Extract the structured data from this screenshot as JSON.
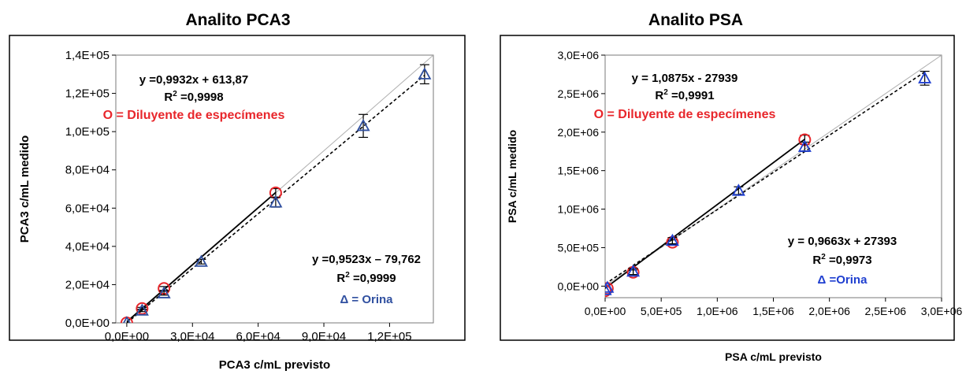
{
  "chart_data": [
    {
      "type": "scatter",
      "title": "Analito PCA3",
      "xlabel": "PCA3 c/mL previsto",
      "ylabel": "PCA3 c/mL medido",
      "xlim": [
        -5000,
        140000
      ],
      "ylim": [
        0,
        140000
      ],
      "x_ticks": [
        0,
        30000,
        60000,
        90000,
        120000
      ],
      "x_tick_labels": [
        "0,0E+00",
        "3,0E+04",
        "6,0E+04",
        "9,0E+04",
        "1,2E+05"
      ],
      "y_ticks": [
        0,
        20000,
        40000,
        60000,
        80000,
        100000,
        120000,
        140000
      ],
      "y_tick_labels": [
        "0,0E+00",
        "2,0E+04",
        "4,0E+04",
        "6,0E+04",
        "8,0E+04",
        "1,0E+05",
        "1,2E+05",
        "1,4E+05"
      ],
      "grid": false,
      "identity_line": true,
      "series": [
        {
          "marker": "circle",
          "color": "#e8262b",
          "points": [
            {
              "x": 0,
              "y": 0,
              "err": 0
            },
            {
              "x": 7000,
              "y": 7500,
              "err": 600
            },
            {
              "x": 17000,
              "y": 18000,
              "err": 1000
            },
            {
              "x": 68000,
              "y": 68000,
              "err": 2200
            }
          ],
          "fit": {
            "slope": 0.9932,
            "intercept": 613.87,
            "style": "solid",
            "x_range": [
              0,
              68000
            ]
          }
        },
        {
          "marker": "triangle",
          "color": "#3050a0",
          "points": [
            {
              "x": 0,
              "y": 0,
              "err": 0
            },
            {
              "x": 7000,
              "y": 6500,
              "err": 600
            },
            {
              "x": 17000,
              "y": 15500,
              "err": 1000
            },
            {
              "x": 34000,
              "y": 32000,
              "err": 1200
            },
            {
              "x": 68000,
              "y": 63000,
              "err": 2500
            },
            {
              "x": 108000,
              "y": 103000,
              "err": 6000
            },
            {
              "x": 136000,
              "y": 130000,
              "err": 5000
            }
          ],
          "fit": {
            "slope": 0.9523,
            "intercept": -79.762,
            "style": "dashed",
            "x_range": [
              0,
              136000
            ]
          }
        }
      ],
      "annotations": {
        "eq1": "y =0,9932x + 613,87",
        "r2_1_prefix": "R",
        "r2_1_sup": "2",
        "r2_1_value": " =0,9998",
        "legend1": "O = Diluyente de especímenes",
        "eq2": "y =0,9523x – 79,762",
        "r2_2_prefix": "R",
        "r2_2_sup": "2",
        "r2_2_value": " =0,9999",
        "legend2": "Δ = Orina"
      }
    },
    {
      "type": "scatter",
      "title": "Analito PSA",
      "xlabel": "PSA c/mL previsto",
      "ylabel": "PSA c/mL medido",
      "xlim": [
        0,
        3000000
      ],
      "ylim": [
        -150000,
        3000000
      ],
      "x_ticks": [
        0,
        500000,
        1000000,
        1500000,
        2000000,
        2500000,
        3000000
      ],
      "x_tick_labels": [
        "0,0E+00",
        "5,0E+05",
        "1,0E+06",
        "1,5E+06",
        "2,0E+06",
        "2,5E+06",
        "3,0E+06"
      ],
      "y_ticks": [
        0,
        500000,
        1000000,
        1500000,
        2000000,
        2500000,
        3000000
      ],
      "y_tick_labels": [
        "0,0E+00",
        "5,0E+05",
        "1,0E+06",
        "1,5E+06",
        "2,0E+06",
        "2,5E+06",
        "3,0E+06"
      ],
      "grid": false,
      "identity_line": true,
      "series": [
        {
          "marker": "circle",
          "color": "#e8262b",
          "points": [
            {
              "x": 0,
              "y": -60000,
              "err": 0
            },
            {
              "x": 20000,
              "y": -30000,
              "err": 0
            },
            {
              "x": 250000,
              "y": 180000,
              "err": 30000
            },
            {
              "x": 600000,
              "y": 570000,
              "err": 30000
            },
            {
              "x": 1780000,
              "y": 1900000,
              "err": 60000
            }
          ],
          "fit": {
            "slope": 1.0875,
            "intercept": -27939,
            "style": "solid",
            "x_range": [
              0,
              1780000
            ]
          }
        },
        {
          "marker": "triangle",
          "color": "#1f3fd0",
          "points": [
            {
              "x": 0,
              "y": -50000,
              "err": 0
            },
            {
              "x": 20000,
              "y": -20000,
              "err": 0
            },
            {
              "x": 250000,
              "y": 190000,
              "err": 40000
            },
            {
              "x": 600000,
              "y": 590000,
              "err": 40000
            },
            {
              "x": 1190000,
              "y": 1240000,
              "err": 50000
            },
            {
              "x": 1780000,
              "y": 1810000,
              "err": 60000
            },
            {
              "x": 2850000,
              "y": 2700000,
              "err": 90000
            }
          ],
          "fit": {
            "slope": 0.9663,
            "intercept": 27393,
            "style": "dashed",
            "x_range": [
              0,
              2850000
            ]
          }
        }
      ],
      "annotations": {
        "eq1": "y = 1,0875x - 27939",
        "r2_1_prefix": "R",
        "r2_1_sup": "2",
        "r2_1_value": " =0,9991",
        "legend1": "O = Diluyente de especímenes",
        "eq2": "y = 0,9663x + 27393",
        "r2_2_prefix": "R",
        "r2_2_sup": "2",
        "r2_2_value": " =0,9973",
        "legend2": "Δ =Orina"
      }
    }
  ]
}
